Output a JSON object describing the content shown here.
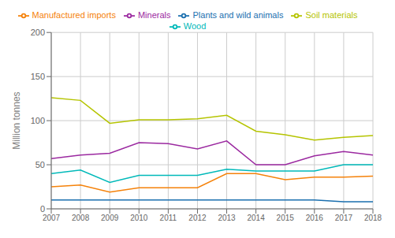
{
  "chart_data": {
    "type": "line",
    "ylabel": "Million tonnes",
    "x": [
      2007,
      2008,
      2009,
      2010,
      2011,
      2012,
      2013,
      2014,
      2015,
      2016,
      2017,
      2018
    ],
    "xlim": [
      2007,
      2018
    ],
    "xticks": [
      2007,
      2008,
      2009,
      2010,
      2011,
      2012,
      2013,
      2014,
      2015,
      2016,
      2017,
      2018
    ],
    "ylim": [
      0,
      200
    ],
    "yticks": [
      0,
      50,
      100,
      150,
      200
    ],
    "grid": true,
    "legend": "top",
    "series": [
      {
        "name": "Plants and wild animals",
        "color": "#1a6faf",
        "values": [
          10,
          10,
          10,
          10,
          10,
          10,
          10,
          10,
          10,
          10,
          8,
          8
        ]
      },
      {
        "name": "Soil materials",
        "color": "#b5c400",
        "values": [
          126,
          123,
          97,
          101,
          101,
          102,
          106,
          88,
          84,
          78,
          81,
          83
        ]
      },
      {
        "name": "Minerals",
        "color": "#9b29a0",
        "values": [
          57,
          61,
          63,
          75,
          74,
          68,
          77,
          50,
          50,
          60,
          65,
          61
        ]
      },
      {
        "name": "Wood",
        "color": "#00b9b9",
        "values": [
          40,
          44,
          30,
          38,
          38,
          38,
          45,
          43,
          43,
          43,
          50,
          50
        ]
      },
      {
        "name": "Manufactured imports",
        "color": "#f5820a",
        "values": [
          25,
          27,
          19,
          24,
          24,
          24,
          40,
          40,
          33,
          36,
          36,
          37
        ]
      }
    ]
  }
}
